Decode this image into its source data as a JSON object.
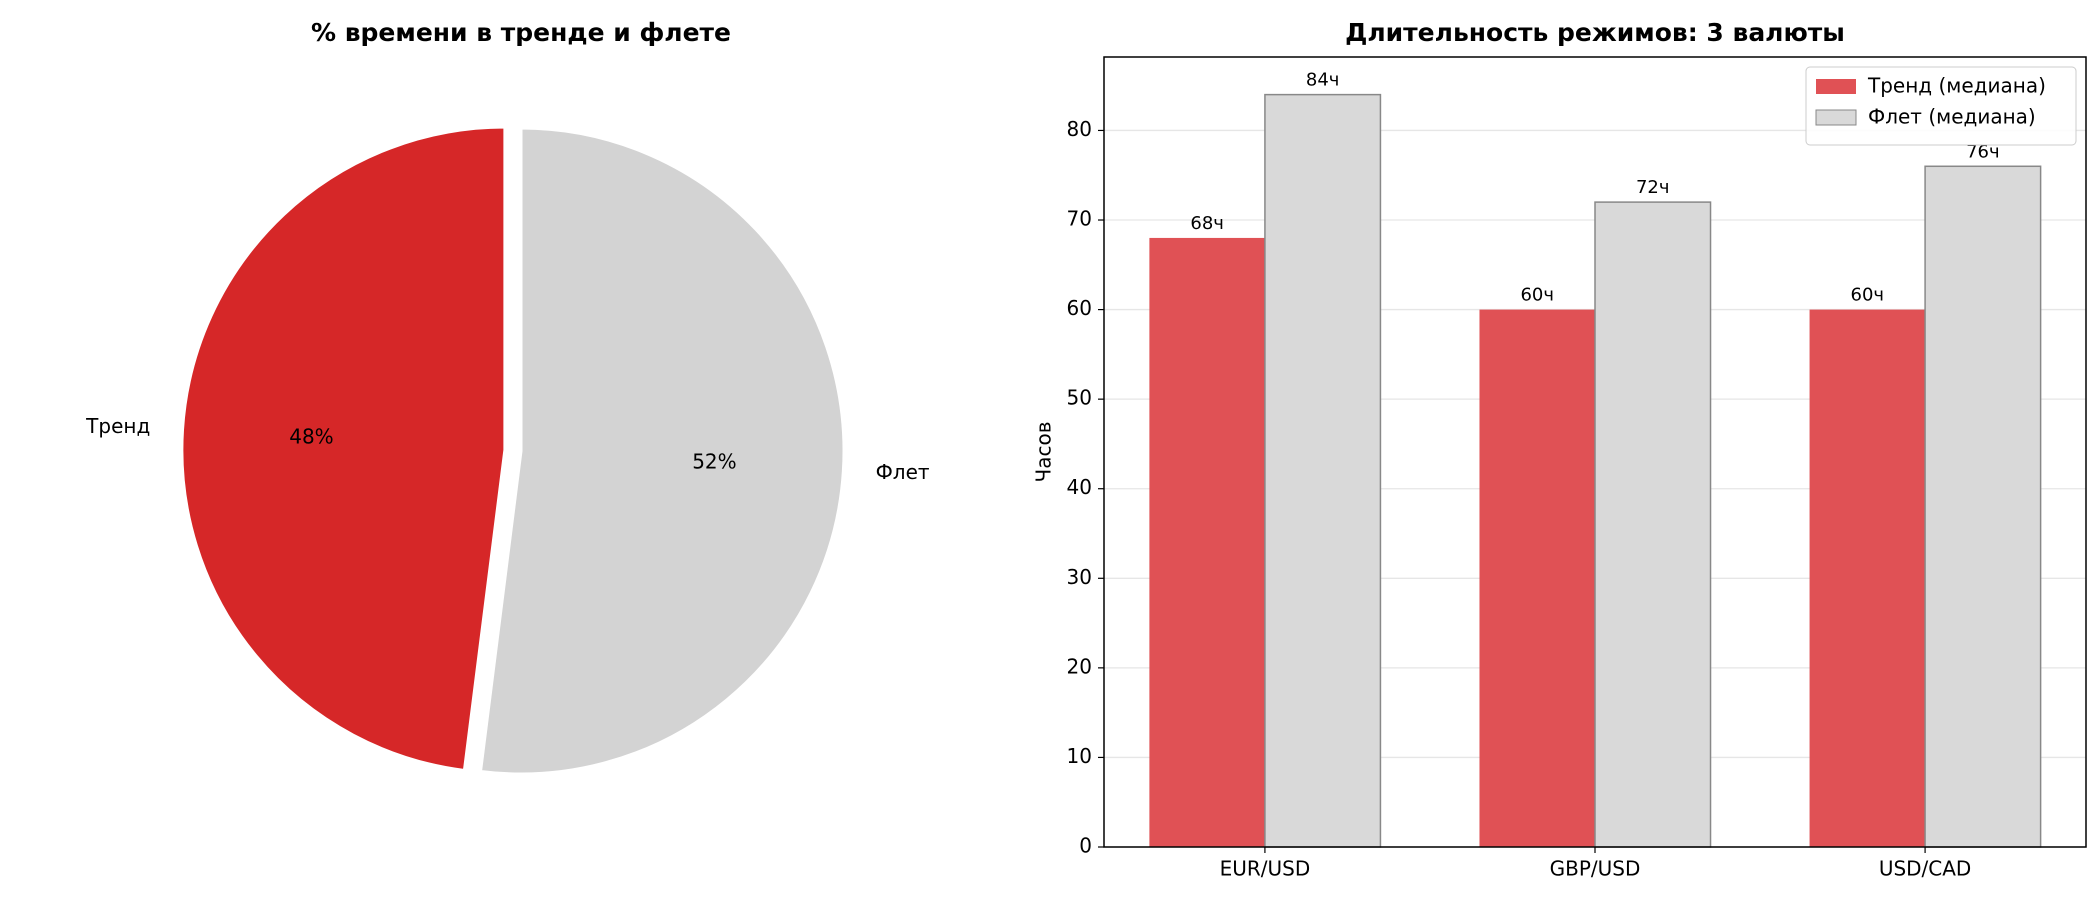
{
  "chart_data": [
    {
      "type": "pie",
      "title": "% времени в тренде и флете",
      "labels": [
        "Тренд",
        "Флет"
      ],
      "values": [
        48,
        52
      ],
      "value_labels": [
        "48%",
        "52%"
      ],
      "colors": [
        "#d62728",
        "#d3d3d3"
      ],
      "explode": [
        0.05,
        0
      ],
      "start_angle": 90
    },
    {
      "type": "bar",
      "title": "Длительность режимов: 3 валюты",
      "ylabel": "Часов",
      "categories": [
        "EUR/USD",
        "GBP/USD",
        "USD/CAD"
      ],
      "series": [
        {
          "name": "Тренд (медиана)",
          "color": "#e05155",
          "values": [
            68,
            60,
            60
          ],
          "value_labels": [
            "68ч",
            "60ч",
            "60ч"
          ]
        },
        {
          "name": "Флет (медиана)",
          "color": "#d9d9d9",
          "edgecolor": "#888888",
          "values": [
            84,
            72,
            76
          ],
          "value_labels": [
            "84ч",
            "72ч",
            "76ч"
          ]
        }
      ],
      "ylim": [
        0,
        88.2
      ],
      "yticks": [
        0,
        10,
        20,
        30,
        40,
        50,
        60,
        70,
        80
      ],
      "grid": true,
      "legend": "upper right"
    }
  ]
}
